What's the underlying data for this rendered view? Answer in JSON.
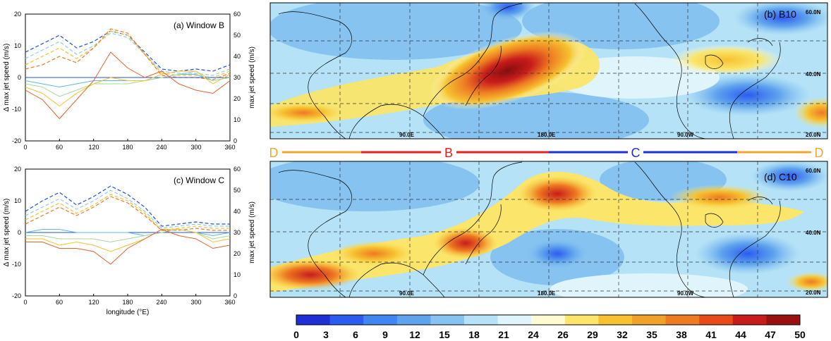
{
  "palette": {
    "axis": "#000000",
    "zero_line": "#1f2fd6",
    "window_b_strip": "#e81d1d",
    "window_c_strip": "#1f2fd6",
    "window_d_strip": "#f0a830",
    "colorbar": [
      "#1f2fd6",
      "#2b5cf0",
      "#3f86f2",
      "#5fa3ee",
      "#86c3f0",
      "#b5e2f7",
      "#e0f4fb",
      "#fffbd0",
      "#fbe56a",
      "#f6c230",
      "#f1a02a",
      "#ee7a22",
      "#e84a1a",
      "#c81c1c",
      "#9a0f0f"
    ]
  },
  "panel_a": {
    "title": "(a) Window B",
    "ylabel_left": "Δ max jet speed (m/s)",
    "ylabel_right": "max jet speed (m/s)",
    "xticks": [
      "0",
      "60",
      "120",
      "180",
      "240",
      "300",
      "360"
    ],
    "yticks_left": [
      "-20",
      "-10",
      "0",
      "10",
      "20"
    ],
    "yticks_right": [
      "0",
      "10",
      "20",
      "30",
      "40",
      "50",
      "60"
    ]
  },
  "panel_c": {
    "title": "(c) Window C",
    "xlabel": "longitude (°E)",
    "ylabel_left": "Δ max jet speed (m/s)",
    "ylabel_right": "max jet speed (m/s)",
    "xticks": [
      "0",
      "60",
      "120",
      "180",
      "240",
      "300",
      "360"
    ],
    "yticks_left": [
      "-20",
      "-10",
      "0",
      "10",
      "20"
    ],
    "yticks_right": [
      "0",
      "10",
      "20",
      "30",
      "40",
      "50",
      "60"
    ]
  },
  "map_b": {
    "label": "(b) B10",
    "lat_labels": [
      "60.0N",
      "40.0N",
      "20.0N"
    ],
    "lon_labels": [
      "90.0E",
      "180.0E",
      "90.0W"
    ]
  },
  "map_d": {
    "label": "(d) C10",
    "lat_labels": [
      "60.0N",
      "40.0N",
      "20.0N"
    ],
    "lon_labels": [
      "90.0E",
      "180.0E",
      "90.0W"
    ]
  },
  "strip": {
    "left": "D",
    "b": "B",
    "c": "C",
    "right": "D"
  },
  "colorbar": {
    "ticks": [
      "0",
      "3",
      "6",
      "9",
      "12",
      "15",
      "18",
      "21",
      "24",
      "26",
      "29",
      "32",
      "35",
      "38",
      "41",
      "44",
      "47",
      "50"
    ]
  },
  "chart_data": [
    {
      "type": "line",
      "panel": "a",
      "x": [
        0,
        30,
        60,
        90,
        120,
        150,
        180,
        210,
        240,
        270,
        300,
        330,
        360
      ],
      "xlim": [
        0,
        360
      ],
      "ylim_left": [
        -20,
        20
      ],
      "ylim_right": [
        0,
        60
      ],
      "series": [
        {
          "axis": "right",
          "color": "#2050e0",
          "dash": true,
          "values": [
            42,
            46,
            50,
            44,
            47,
            52,
            50,
            42,
            34,
            33,
            34,
            33,
            36
          ]
        },
        {
          "axis": "right",
          "color": "#8cd0e6",
          "dash": true,
          "values": [
            39,
            43,
            47,
            41,
            45,
            51,
            49,
            41,
            33,
            32,
            32,
            31,
            34
          ]
        },
        {
          "axis": "right",
          "color": "#f2c230",
          "dash": true,
          "values": [
            36,
            40,
            44,
            39,
            44,
            52,
            50,
            41,
            32,
            31,
            31,
            30,
            33
          ]
        },
        {
          "axis": "right",
          "color": "#ee7a22",
          "dash": true,
          "values": [
            34,
            36,
            40,
            37,
            44,
            53,
            51,
            41,
            31,
            30,
            30,
            29,
            32
          ]
        },
        {
          "axis": "left",
          "color": "#2050e0",
          "dash": false,
          "values": [
            0,
            0,
            0,
            0,
            0,
            0,
            0,
            0,
            0,
            0,
            0,
            0,
            0
          ]
        },
        {
          "axis": "left",
          "color": "#5fb8e0",
          "dash": false,
          "values": [
            -1,
            -2,
            -3,
            -2,
            -1,
            -1,
            -1,
            -1,
            0,
            1,
            1,
            -1,
            0
          ]
        },
        {
          "axis": "left",
          "color": "#a8d89a",
          "dash": false,
          "values": [
            -2,
            -3,
            -6,
            -4,
            -2,
            -2,
            -2,
            -1,
            0,
            1,
            2,
            -1,
            0
          ]
        },
        {
          "axis": "left",
          "color": "#f2c230",
          "dash": false,
          "values": [
            -3,
            -5,
            -9,
            -5,
            -2,
            0,
            -1,
            -1,
            1,
            2,
            2,
            -2,
            1
          ]
        },
        {
          "axis": "left",
          "color": "#e4622a",
          "dash": false,
          "values": [
            -4,
            -7,
            -13,
            -7,
            -1,
            8,
            3,
            0,
            2,
            -2,
            -4,
            -5,
            -1
          ]
        }
      ]
    },
    {
      "type": "line",
      "panel": "c",
      "x": [
        0,
        30,
        60,
        90,
        120,
        150,
        180,
        210,
        240,
        270,
        300,
        330,
        360
      ],
      "xlim": [
        0,
        360
      ],
      "ylim_left": [
        -20,
        20
      ],
      "ylim_right": [
        0,
        60
      ],
      "series": [
        {
          "axis": "right",
          "color": "#2050e0",
          "dash": true,
          "values": [
            40,
            45,
            49,
            43,
            47,
            52,
            48,
            42,
            33,
            34,
            35,
            34,
            34
          ]
        },
        {
          "axis": "right",
          "color": "#8cd0e6",
          "dash": true,
          "values": [
            38,
            42,
            46,
            41,
            45,
            50,
            46,
            40,
            32,
            33,
            34,
            33,
            33
          ]
        },
        {
          "axis": "right",
          "color": "#f2c230",
          "dash": true,
          "values": [
            36,
            40,
            44,
            39,
            43,
            48,
            45,
            39,
            31,
            32,
            33,
            32,
            32
          ]
        },
        {
          "axis": "right",
          "color": "#ee7a22",
          "dash": true,
          "values": [
            34,
            38,
            42,
            38,
            42,
            47,
            44,
            38,
            31,
            31,
            32,
            31,
            31
          ]
        },
        {
          "axis": "left",
          "color": "#2050e0",
          "dash": false,
          "values": [
            0,
            0,
            0,
            0,
            0,
            0,
            0,
            0,
            0,
            0,
            0,
            0,
            0
          ]
        },
        {
          "axis": "left",
          "color": "#5fb8e0",
          "dash": false,
          "values": [
            0,
            1,
            1,
            0,
            0,
            0,
            0,
            -1,
            0,
            1,
            0,
            -1,
            0
          ]
        },
        {
          "axis": "left",
          "color": "#a8d89a",
          "dash": false,
          "values": [
            -1,
            -1,
            -2,
            -2,
            -2,
            -3,
            -2,
            -1,
            0,
            1,
            0,
            -2,
            -1
          ]
        },
        {
          "axis": "left",
          "color": "#f2c230",
          "dash": false,
          "values": [
            -2,
            -2,
            -4,
            -3,
            -4,
            -6,
            -4,
            -2,
            1,
            1,
            0,
            -3,
            -2
          ]
        },
        {
          "axis": "left",
          "color": "#e4622a",
          "dash": false,
          "values": [
            -3,
            -3,
            -5,
            -5,
            -6,
            -10,
            -5,
            -2,
            1,
            -1,
            -2,
            -5,
            -4
          ]
        }
      ]
    }
  ]
}
